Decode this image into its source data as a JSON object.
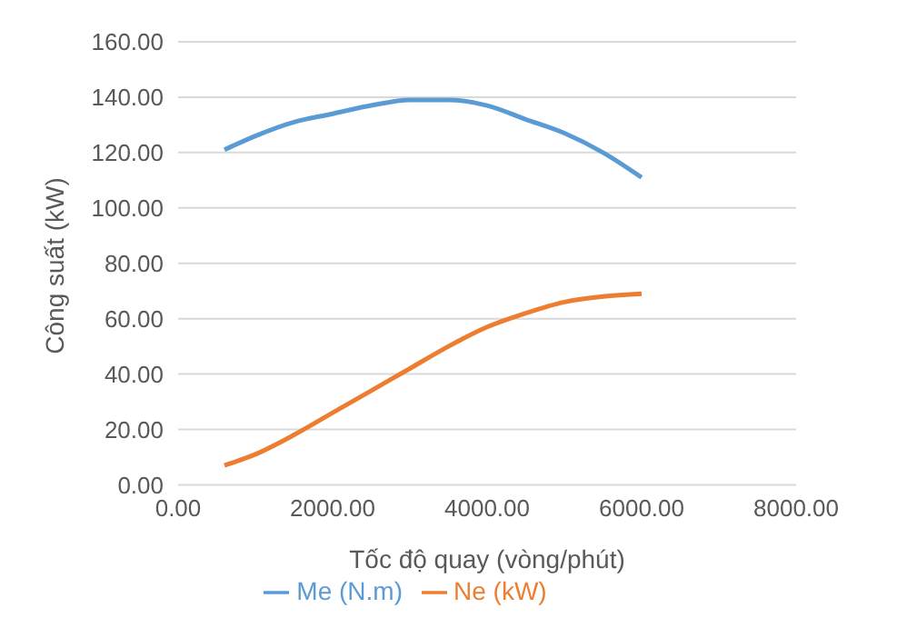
{
  "chart_data": {
    "type": "line",
    "xlabel": "Tốc độ quay (vòng/phút)",
    "ylabel": "Công suất (kW)",
    "x": [
      600,
      1000,
      1500,
      2000,
      2500,
      3000,
      3500,
      4000,
      4500,
      5000,
      5500,
      6000
    ],
    "series": [
      {
        "name": "Me (N.m)",
        "color": "#5b9bd5",
        "values": [
          121,
          126,
          131,
          134,
          137,
          139,
          139,
          137,
          132,
          127,
          120,
          111
        ]
      },
      {
        "name": "Ne (kW)",
        "color": "#ed7d31",
        "values": [
          7,
          11,
          18,
          26,
          34,
          42,
          50,
          57,
          62,
          66,
          68,
          69
        ]
      }
    ],
    "xlim": [
      0,
      8000
    ],
    "xticks": [
      {
        "value": 0,
        "label": "0.00"
      },
      {
        "value": 2000,
        "label": "2000.00"
      },
      {
        "value": 4000,
        "label": "4000.00"
      },
      {
        "value": 6000,
        "label": "6000.00"
      },
      {
        "value": 8000,
        "label": "8000.00"
      }
    ],
    "ylim": [
      0,
      160
    ],
    "yticks": [
      {
        "value": 0,
        "label": "0.00"
      },
      {
        "value": 20,
        "label": "20.00"
      },
      {
        "value": 40,
        "label": "40.00"
      },
      {
        "value": 60,
        "label": "60.00"
      },
      {
        "value": 80,
        "label": "80.00"
      },
      {
        "value": 100,
        "label": "100.00"
      },
      {
        "value": 120,
        "label": "120.00"
      },
      {
        "value": 140,
        "label": "140.00"
      },
      {
        "value": 160,
        "label": "160.00"
      }
    ],
    "grid": "y",
    "legend": "bottom",
    "marker": "none",
    "line_style": "solid"
  }
}
